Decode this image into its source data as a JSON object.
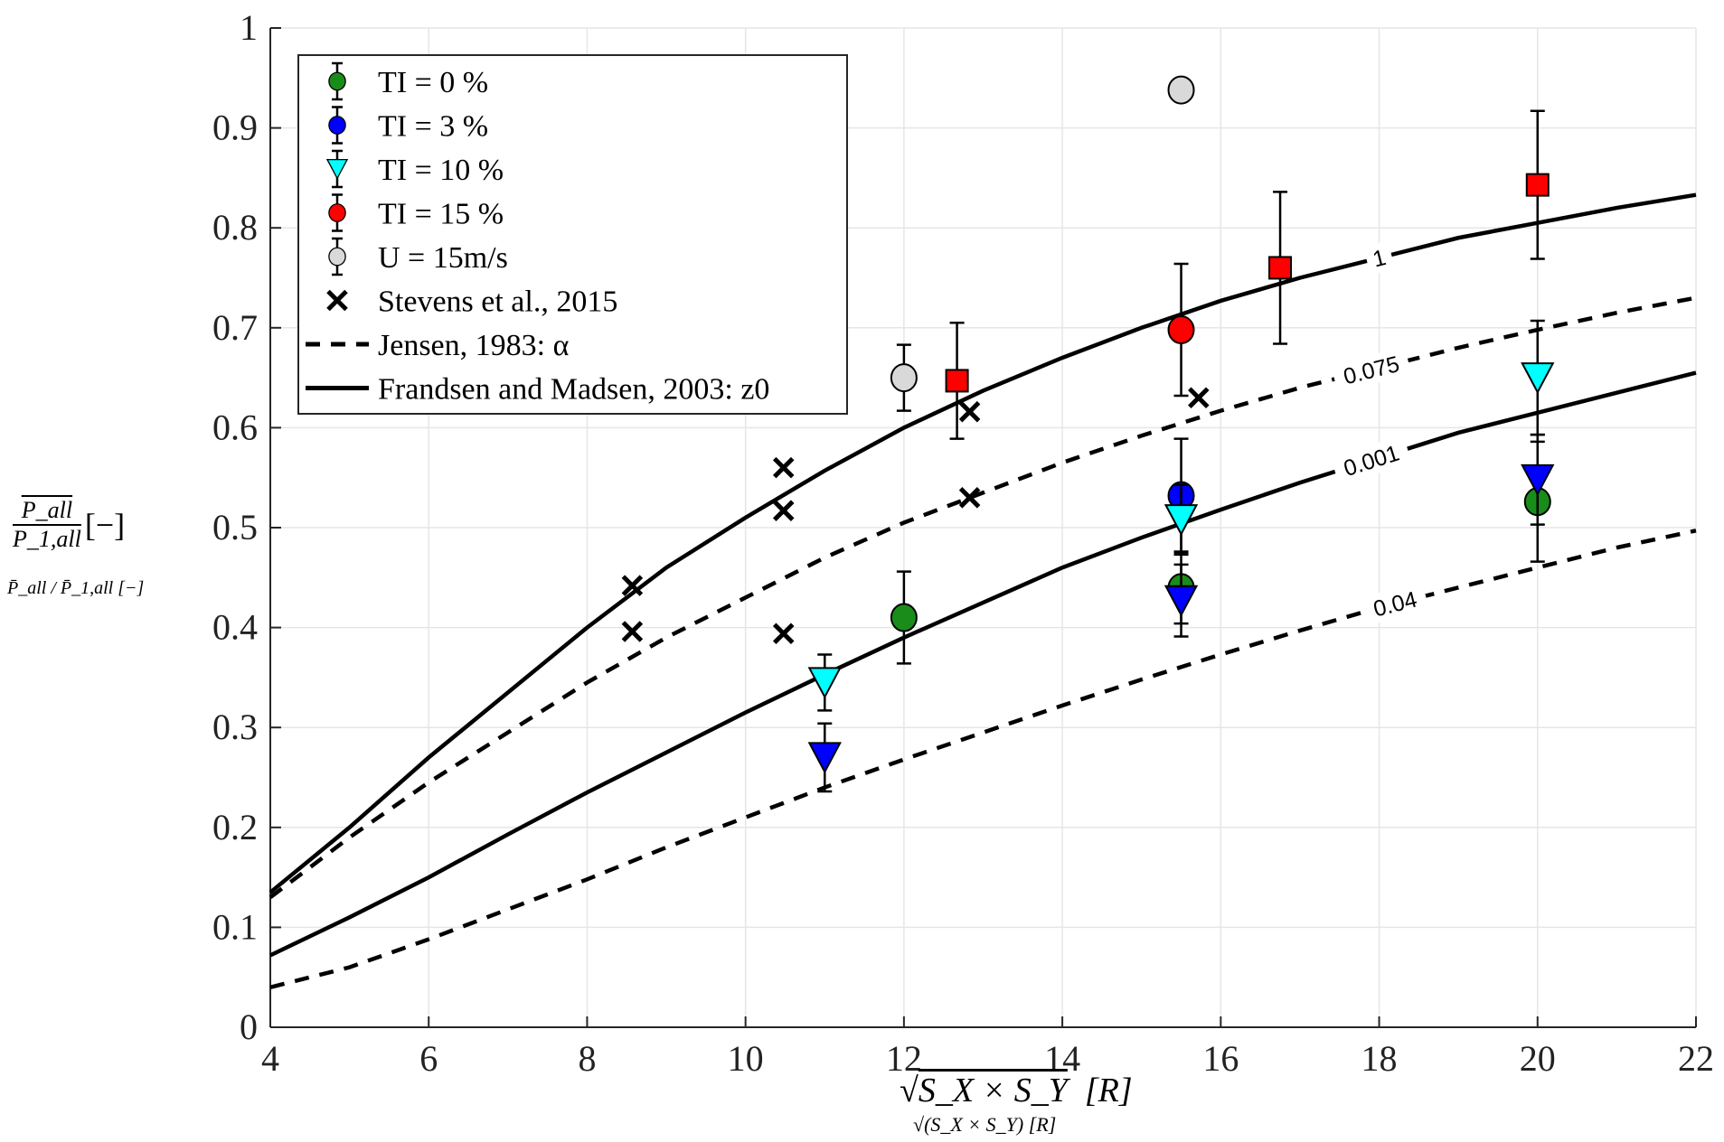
{
  "chart_data": {
    "type": "scatter",
    "title": "",
    "xlabel": "√(S_X × S_Y) [R]",
    "xlabel_parts": {
      "radicand": "S_X × S_Y",
      "unit": "[R]"
    },
    "ylabel": "P̄_all / P̄_1,all [−]",
    "ylabel_parts": {
      "numerator": "P_all",
      "denominator": "P_1,all",
      "unit": "[−]"
    },
    "xlim": [
      4,
      22
    ],
    "ylim": [
      0,
      1
    ],
    "xticks": [
      4,
      6,
      8,
      10,
      12,
      14,
      16,
      18,
      20,
      22
    ],
    "yticks": [
      0,
      0.1,
      0.2,
      0.3,
      0.4,
      0.5,
      0.6,
      0.7,
      0.8,
      0.9,
      1
    ],
    "ytick_labels": [
      "0",
      "0.1",
      "0.2",
      "0.3",
      "0.4",
      "0.5",
      "0.6",
      "0.7",
      "0.8",
      "0.9",
      "1"
    ],
    "grid": true,
    "legend_position": "top-left",
    "legend": [
      {
        "label": "TI = 0 %",
        "kind": "errmarker",
        "marker": "circle",
        "color": "#1a8c1a"
      },
      {
        "label": "TI = 3 %",
        "kind": "errmarker",
        "marker": "circle",
        "color": "#0000ff"
      },
      {
        "label": "TI = 10 %",
        "kind": "errmarker",
        "marker": "triangle",
        "color": "#00ffff"
      },
      {
        "label": "TI = 15 %",
        "kind": "errmarker",
        "marker": "circle",
        "color": "#ff0000"
      },
      {
        "label": "U = 15m/s",
        "kind": "errmarker",
        "marker": "circle",
        "color": "#d9d9d9"
      },
      {
        "label": "Stevens et al., 2015",
        "kind": "cross",
        "color": "#000000"
      },
      {
        "label": "Jensen, 1983: α",
        "kind": "dashed",
        "color": "#000000"
      },
      {
        "label": "Frandsen and Madsen, 2003: z0",
        "kind": "solid",
        "color": "#000000"
      }
    ],
    "curves": [
      {
        "name": "Frandsen z0 = 1",
        "style": "solid",
        "label": "1",
        "label_x": 18.0,
        "x": [
          4,
          5,
          6,
          7,
          8,
          9,
          10,
          11,
          12,
          13,
          14,
          15,
          16,
          17,
          18,
          19,
          20,
          21,
          22
        ],
        "y": [
          0.135,
          0.2,
          0.27,
          0.335,
          0.4,
          0.46,
          0.51,
          0.557,
          0.6,
          0.637,
          0.67,
          0.7,
          0.727,
          0.75,
          0.77,
          0.79,
          0.805,
          0.82,
          0.833
        ]
      },
      {
        "name": "Frandsen z0 = 0.001",
        "style": "solid",
        "label": "0.001",
        "label_x": 17.9,
        "x": [
          4,
          5,
          6,
          7,
          8,
          9,
          10,
          11,
          12,
          13,
          14,
          15,
          16,
          17,
          18,
          19,
          20,
          21,
          22
        ],
        "y": [
          0.072,
          0.11,
          0.15,
          0.193,
          0.235,
          0.275,
          0.315,
          0.353,
          0.39,
          0.425,
          0.46,
          0.49,
          0.518,
          0.545,
          0.57,
          0.595,
          0.615,
          0.635,
          0.655
        ]
      },
      {
        "name": "Jensen α = 0.075",
        "style": "dashed",
        "label": "0.075",
        "label_x": 17.9,
        "x": [
          4,
          5,
          6,
          7,
          8,
          9,
          10,
          11,
          12,
          13,
          14,
          15,
          16,
          17,
          18,
          19,
          20,
          21,
          22
        ],
        "y": [
          0.13,
          0.19,
          0.245,
          0.295,
          0.345,
          0.39,
          0.43,
          0.47,
          0.505,
          0.535,
          0.565,
          0.592,
          0.617,
          0.64,
          0.66,
          0.68,
          0.698,
          0.715,
          0.73
        ]
      },
      {
        "name": "Jensen α = 0.04",
        "style": "dashed",
        "label": "0.04",
        "label_x": 18.2,
        "x": [
          4,
          5,
          6,
          7,
          8,
          9,
          10,
          11,
          12,
          13,
          14,
          15,
          16,
          17,
          18,
          19,
          20,
          21,
          22
        ],
        "y": [
          0.04,
          0.06,
          0.088,
          0.118,
          0.148,
          0.18,
          0.21,
          0.24,
          0.268,
          0.295,
          0.322,
          0.348,
          0.373,
          0.397,
          0.42,
          0.44,
          0.46,
          0.48,
          0.497
        ]
      }
    ],
    "points": [
      {
        "series": "TI = 0 %",
        "marker": "circle",
        "color": "#1a8c1a",
        "x": 12,
        "y": 0.41,
        "err": 0.046
      },
      {
        "series": "TI = 0 %",
        "marker": "circle",
        "color": "#1a8c1a",
        "x": 15.5,
        "y": 0.44,
        "err": 0.036
      },
      {
        "series": "TI = 0 %",
        "marker": "circle",
        "color": "#1a8c1a",
        "x": 20,
        "y": 0.526,
        "err": 0.06
      },
      {
        "series": "TI = 3 %",
        "marker": "circle",
        "color": "#0000ff",
        "x": 15.5,
        "y": 0.532,
        "err": 0.057
      },
      {
        "series": "TI = 3 %",
        "marker": "triangle",
        "color": "#0000ff",
        "x": 11,
        "y": 0.27,
        "err": 0.034
      },
      {
        "series": "TI = 3 %",
        "marker": "triangle",
        "color": "#0000ff",
        "x": 15.5,
        "y": 0.427,
        "err": 0.036
      },
      {
        "series": "TI = 3 %",
        "marker": "triangle",
        "color": "#0000ff",
        "x": 20,
        "y": 0.548,
        "err": 0.045
      },
      {
        "series": "TI = 10 %",
        "marker": "triangle",
        "color": "#00ffff",
        "x": 11,
        "y": 0.345,
        "err": 0.028
      },
      {
        "series": "TI = 10 %",
        "marker": "triangle",
        "color": "#00ffff",
        "x": 15.5,
        "y": 0.508,
        "err": 0.035
      },
      {
        "series": "TI = 10 %",
        "marker": "triangle",
        "color": "#00ffff",
        "x": 20,
        "y": 0.65,
        "err": 0.057
      },
      {
        "series": "TI = 15 %",
        "marker": "circle",
        "color": "#ff0000",
        "x": 15.5,
        "y": 0.698,
        "err": 0.066
      },
      {
        "series": "TI = 15 %",
        "marker": "square",
        "color": "#ff0000",
        "x": 12.67,
        "y": 0.647,
        "err": 0.058
      },
      {
        "series": "TI = 15 %",
        "marker": "square",
        "color": "#ff0000",
        "x": 16.75,
        "y": 0.76,
        "err": 0.076
      },
      {
        "series": "TI = 15 %",
        "marker": "square",
        "color": "#ff0000",
        "x": 20,
        "y": 0.843,
        "err": 0.074
      },
      {
        "series": "U = 15m/s",
        "marker": "circle",
        "color": "#d9d9d9",
        "x": 12,
        "y": 0.65,
        "err": 0.033
      },
      {
        "series": "U = 15m/s",
        "marker": "circle",
        "color": "#d9d9d9",
        "x": 15.5,
        "y": 0.938,
        "err": 0.005
      }
    ],
    "stevens": {
      "x": [
        8.57,
        8.57,
        10.48,
        10.48,
        10.48,
        12.83,
        12.83,
        15.72
      ],
      "y": [
        0.442,
        0.396,
        0.56,
        0.517,
        0.394,
        0.616,
        0.53,
        0.63
      ]
    }
  }
}
